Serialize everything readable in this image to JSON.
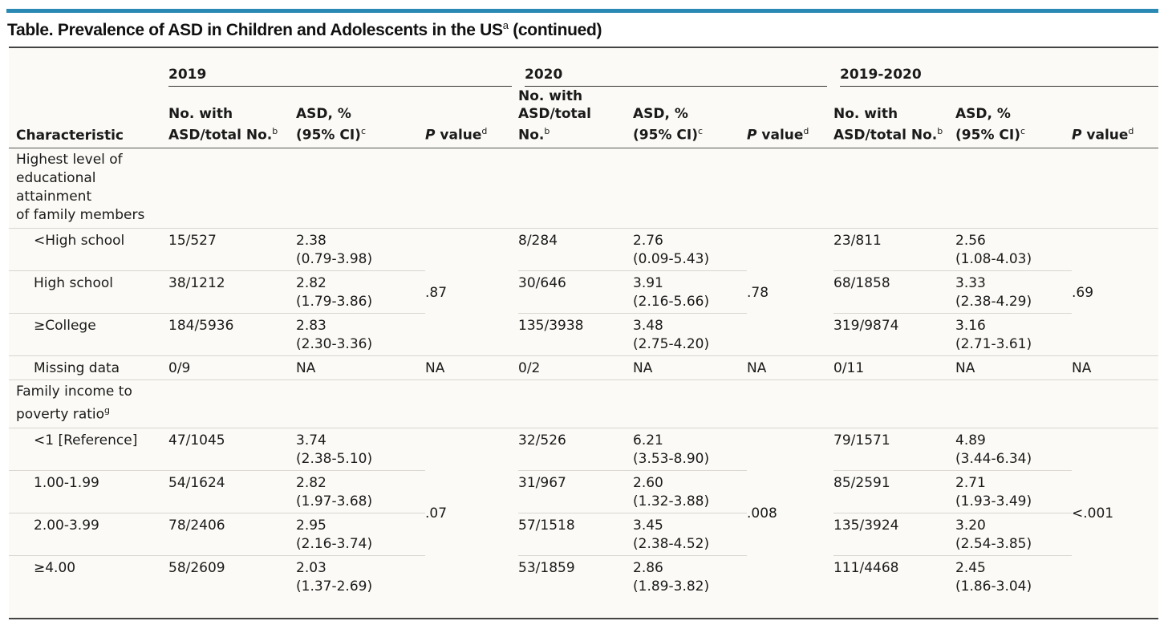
{
  "title": {
    "text": "Table. Prevalence of ASD in Children and Adolescents in the US",
    "sup": "a",
    "suffix": " (continued)"
  },
  "colors": {
    "accent_bar": "#2a8ab3",
    "table_bg": "#fbfaf6"
  },
  "years": [
    "2019",
    "2020",
    "2019-2020"
  ],
  "headers": {
    "characteristic": "Characteristic",
    "no_with_2019": "No. with ASD/total No.",
    "no_with_2020_line1": "No. with",
    "no_with_2020_line2": "ASD/total",
    "no_with_2020_line3": "No.",
    "no_sup": "b",
    "asd_line1": "ASD, %",
    "asd_line2": "(95% CI)",
    "asd_sup": "c",
    "p_italic": "P",
    "p_rest": " value",
    "p_sup": "d"
  },
  "section1": {
    "label_lines": [
      "Highest level of",
      "educational",
      "attainment",
      "of family members"
    ],
    "rows": [
      {
        "label": "<High school",
        "n2019": "15/527",
        "a2019": "2.38",
        "ci2019": "(0.79-3.98)",
        "n2020": "8/284",
        "a2020": "2.76",
        "ci2020": "(0.09-5.43)",
        "nall": "23/811",
        "aall": "2.56",
        "ciall": "(1.08-4.03)"
      },
      {
        "label": "High school",
        "n2019": "38/1212",
        "a2019": "2.82",
        "ci2019": "(1.79-3.86)",
        "n2020": "30/646",
        "a2020": "3.91",
        "ci2020": "(2.16-5.66)",
        "nall": "68/1858",
        "aall": "3.33",
        "ciall": "(2.38-4.29)"
      },
      {
        "label": "≥College",
        "n2019": "184/5936",
        "a2019": "2.83",
        "ci2019": "(2.30-3.36)",
        "n2020": "135/3938",
        "a2020": "3.48",
        "ci2020": "(2.75-4.20)",
        "nall": "319/9874",
        "aall": "3.16",
        "ciall": "(2.71-3.61)"
      }
    ],
    "p2019": ".87",
    "p2020": ".78",
    "pall": ".69",
    "missing": {
      "label": "Missing data",
      "n2019": "0/9",
      "a2019": "NA",
      "p2019": "NA",
      "n2020": "0/2",
      "a2020": "NA",
      "p2020": "NA",
      "nall": "0/11",
      "aall": "NA",
      "pall": "NA"
    }
  },
  "section2": {
    "label_line1": "Family income to",
    "label_line2": "poverty ratio",
    "label_sup": "g",
    "rows": [
      {
        "label": "<1 [Reference]",
        "n2019": "47/1045",
        "a2019": "3.74",
        "ci2019": "(2.38-5.10)",
        "n2020": "32/526",
        "a2020": "6.21",
        "ci2020": "(3.53-8.90)",
        "nall": "79/1571",
        "aall": "4.89",
        "ciall": "(3.44-6.34)"
      },
      {
        "label": "1.00-1.99",
        "n2019": "54/1624",
        "a2019": "2.82",
        "ci2019": "(1.97-3.68)",
        "n2020": "31/967",
        "a2020": "2.60",
        "ci2020": "(1.32-3.88)",
        "nall": "85/2591",
        "aall": "2.71",
        "ciall": "(1.93-3.49)"
      },
      {
        "label": "2.00-3.99",
        "n2019": "78/2406",
        "a2019": "2.95",
        "ci2019": "(2.16-3.74)",
        "n2020": "57/1518",
        "a2020": "3.45",
        "ci2020": "(2.38-4.52)",
        "nall": "135/3924",
        "aall": "3.20",
        "ciall": "(2.54-3.85)"
      },
      {
        "label": "≥4.00",
        "n2019": "58/2609",
        "a2019": "2.03",
        "ci2019": "(1.37-2.69)",
        "n2020": "53/1859",
        "a2020": "2.86",
        "ci2020": "(1.89-3.82)",
        "nall": "111/4468",
        "aall": "2.45",
        "ciall": "(1.86-3.04)"
      }
    ],
    "p2019": ".07",
    "p2020": ".008",
    "pall": "<.001"
  }
}
